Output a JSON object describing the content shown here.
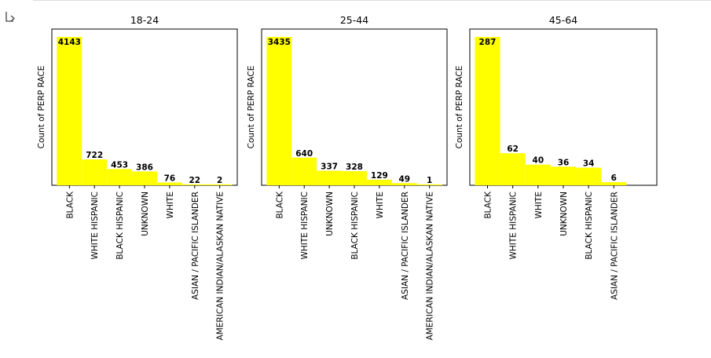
{
  "output_icon": "output-arrow-icon",
  "colors": {
    "bar": "#ffff00",
    "axis": "#000000"
  },
  "chart_data": [
    {
      "type": "bar",
      "title": "18-24",
      "ylabel": "Count of PERP RACE",
      "categories": [
        "BLACK",
        "WHITE HISPANIC",
        "BLACK HISPANIC",
        "UNKNOWN",
        "WHITE",
        "ASIAN / PACIFIC ISLANDER",
        "AMERICAN INDIAN/ALASKAN NATIVE"
      ],
      "values": [
        4143,
        722,
        453,
        386,
        76,
        22,
        2
      ],
      "labels": [
        "4143",
        "722",
        "453",
        "386",
        "76",
        "22",
        "2"
      ]
    },
    {
      "type": "bar",
      "title": "25-44",
      "ylabel": "Count of PERP RACE",
      "categories": [
        "BLACK",
        "WHITE HISPANIC",
        "UNKNOWN",
        "BLACK HISPANIC",
        "WHITE",
        "ASIAN / PACIFIC ISLANDER",
        "AMERICAN INDIAN/ALASKAN NATIVE"
      ],
      "values": [
        3435,
        640,
        337,
        328,
        129,
        49,
        1
      ],
      "labels": [
        "3435",
        "640",
        "337",
        "328",
        "129",
        "49",
        "1"
      ]
    },
    {
      "type": "bar",
      "title": "45-64",
      "ylabel": "Count of PERP RACE",
      "categories": [
        "BLACK",
        "WHITE HISPANIC",
        "WHITE",
        "UNKNOWN",
        "BLACK HISPANIC",
        "ASIAN / PACIFIC ISLANDER"
      ],
      "values": [
        287,
        62,
        40,
        36,
        34,
        6
      ],
      "labels": [
        "287",
        "62",
        "40",
        "36",
        "34",
        "6"
      ]
    }
  ]
}
